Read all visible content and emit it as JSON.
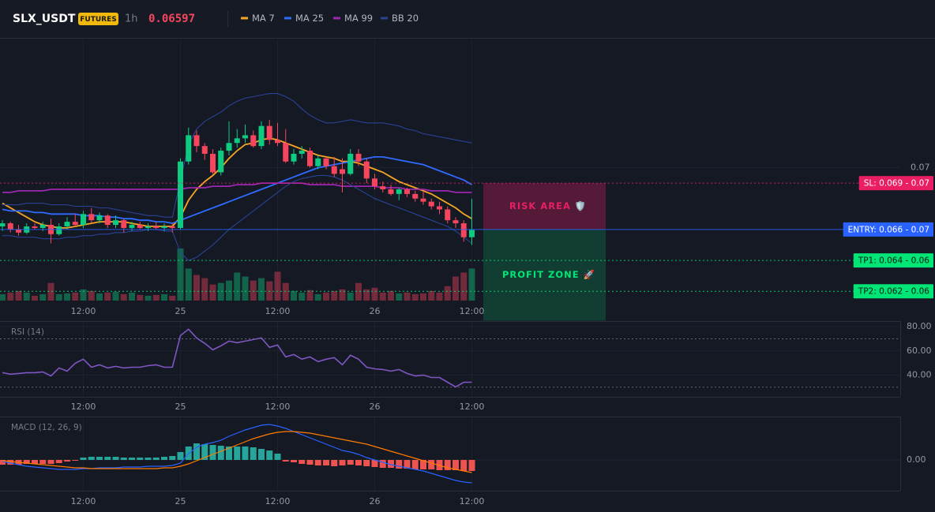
{
  "header": {
    "symbol": "SLX_USDT",
    "badge": "FUTURES",
    "interval": "1h",
    "price": "0.06597"
  },
  "chart_data": [
    {
      "type": "candlestick",
      "categories": [
        null,
        null,
        null,
        null,
        null,
        null,
        null,
        null,
        null,
        null,
        "12:00",
        null,
        null,
        null,
        null,
        null,
        null,
        null,
        null,
        null,
        null,
        null,
        "25",
        null,
        null,
        null,
        null,
        null,
        null,
        null,
        null,
        null,
        null,
        null,
        "12:00",
        null,
        null,
        null,
        null,
        null,
        null,
        null,
        null,
        null,
        null,
        null,
        "26",
        null,
        null,
        null,
        null,
        null,
        null,
        null,
        null,
        null,
        null,
        null,
        "12:00"
      ],
      "open": [
        0.0662,
        0.0664,
        0.066,
        0.0658,
        0.0662,
        0.0661,
        0.0663,
        0.0657,
        0.0662,
        0.0665,
        0.0663,
        0.067,
        0.0666,
        0.0669,
        0.0663,
        0.0666,
        0.0661,
        0.0663,
        0.0661,
        0.0662,
        0.0661,
        0.0662,
        0.0661,
        0.0704,
        0.0721,
        0.0714,
        0.0709,
        0.0697,
        0.0711,
        0.0716,
        0.0719,
        0.0721,
        0.0714,
        0.0727,
        0.0718,
        0.0716,
        0.0704,
        0.0709,
        0.0711,
        0.0701,
        0.0706,
        0.0701,
        0.0699,
        0.0696,
        0.0709,
        0.0704,
        0.0693,
        0.0688,
        0.0686,
        0.0683,
        0.0686,
        0.0683,
        0.068,
        0.0678,
        0.0675,
        0.0673,
        0.0666,
        0.0664,
        0.0655
      ],
      "high": [
        0.0666,
        0.0665,
        0.0663,
        0.0664,
        0.0664,
        0.0665,
        0.0667,
        0.0664,
        0.0668,
        0.067,
        0.0672,
        0.0674,
        0.0671,
        0.067,
        0.0669,
        0.0667,
        0.0665,
        0.0665,
        0.0664,
        0.0665,
        0.0664,
        0.0664,
        0.0706,
        0.0726,
        0.0724,
        0.0716,
        0.0712,
        0.0713,
        0.073,
        0.0725,
        0.0728,
        0.0724,
        0.073,
        0.0731,
        0.0729,
        0.0725,
        0.0712,
        0.0714,
        0.0713,
        0.0708,
        0.0707,
        0.0707,
        0.0706,
        0.0712,
        0.0712,
        0.0706,
        0.0696,
        0.0691,
        0.0689,
        0.0687,
        0.0687,
        0.0685,
        0.0685,
        0.068,
        0.0678,
        0.0675,
        0.0668,
        0.0666,
        0.068
      ],
      "low": [
        0.0659,
        0.0658,
        0.0656,
        0.0657,
        0.066,
        0.0659,
        0.0651,
        0.0656,
        0.066,
        0.0662,
        0.0661,
        0.0664,
        0.0664,
        0.0661,
        0.0661,
        0.0658,
        0.0659,
        0.066,
        0.0659,
        0.066,
        0.0659,
        0.0658,
        0.066,
        0.0702,
        0.071,
        0.0705,
        0.0696,
        0.0695,
        0.0708,
        0.0713,
        0.0716,
        0.0713,
        0.0712,
        0.0715,
        0.0714,
        0.0703,
        0.0702,
        0.0706,
        0.07,
        0.0699,
        0.0699,
        0.0694,
        0.0684,
        0.0695,
        0.0701,
        0.069,
        0.0686,
        0.0684,
        0.0682,
        0.0679,
        0.0681,
        0.0678,
        0.0676,
        0.0673,
        0.067,
        0.0664,
        0.0661,
        0.0652,
        0.065
      ],
      "close": [
        0.0664,
        0.066,
        0.0658,
        0.0662,
        0.0661,
        0.0663,
        0.0657,
        0.0662,
        0.0665,
        0.0663,
        0.067,
        0.0666,
        0.0669,
        0.0663,
        0.0666,
        0.0661,
        0.0663,
        0.0661,
        0.0662,
        0.0661,
        0.0662,
        0.0661,
        0.0704,
        0.0721,
        0.0714,
        0.0709,
        0.0697,
        0.0711,
        0.0716,
        0.0719,
        0.0721,
        0.0714,
        0.0727,
        0.0718,
        0.0716,
        0.0704,
        0.0709,
        0.0711,
        0.0701,
        0.0706,
        0.0701,
        0.0696,
        0.0696,
        0.0709,
        0.0704,
        0.0693,
        0.0688,
        0.0686,
        0.0683,
        0.0686,
        0.0683,
        0.068,
        0.0678,
        0.0675,
        0.0673,
        0.0666,
        0.0664,
        0.0655,
        0.06597
      ],
      "volume": [
        8,
        10,
        12,
        10,
        6,
        8,
        22,
        8,
        9,
        10,
        14,
        12,
        9,
        10,
        11,
        8,
        10,
        7,
        6,
        7,
        8,
        6,
        65,
        40,
        32,
        28,
        20,
        22,
        25,
        35,
        30,
        25,
        28,
        24,
        36,
        22,
        12,
        10,
        13,
        8,
        10,
        12,
        14,
        10,
        22,
        14,
        16,
        10,
        12,
        9,
        10,
        8,
        9,
        12,
        10,
        18,
        30,
        35,
        40
      ],
      "up_color": "#0ecb81",
      "down_color": "#f6465d",
      "ylim": [
        0.0614,
        0.0783
      ],
      "yticks": [
        {
          "value": 0.07,
          "label": "0.07"
        }
      ],
      "series": [
        {
          "name": "MA 7",
          "color": "#f5a623",
          "values": [
            0.0677,
            0.0674,
            0.0671,
            0.0668,
            0.0665,
            0.0663,
            0.0662,
            0.0661,
            0.0661,
            0.0662,
            0.0663,
            0.0664,
            0.0665,
            0.0665,
            0.0665,
            0.0665,
            0.0664,
            0.0663,
            0.0662,
            0.0662,
            0.0662,
            0.0662,
            0.0668,
            0.0679,
            0.0686,
            0.0691,
            0.0695,
            0.07,
            0.0706,
            0.0711,
            0.0715,
            0.0716,
            0.0718,
            0.0719,
            0.0718,
            0.0716,
            0.0714,
            0.0712,
            0.071,
            0.0708,
            0.0707,
            0.0706,
            0.0704,
            0.0704,
            0.0703,
            0.0701,
            0.0699,
            0.0697,
            0.0694,
            0.0691,
            0.0689,
            0.0687,
            0.0685,
            0.0683,
            0.068,
            0.0677,
            0.0674,
            0.067,
            0.0667
          ]
        },
        {
          "name": "MA 25",
          "color": "#2f6bff",
          "values": [
            0.0673,
            0.0672,
            0.0672,
            0.0672,
            0.0671,
            0.0671,
            0.067,
            0.067,
            0.067,
            0.067,
            0.0669,
            0.0669,
            0.0669,
            0.0668,
            0.0668,
            0.0667,
            0.0667,
            0.0666,
            0.0666,
            0.0665,
            0.0665,
            0.0664,
            0.0666,
            0.0668,
            0.067,
            0.0672,
            0.0674,
            0.0676,
            0.0678,
            0.068,
            0.0682,
            0.0684,
            0.0686,
            0.0688,
            0.069,
            0.0692,
            0.0694,
            0.0696,
            0.0698,
            0.07,
            0.0701,
            0.0702,
            0.0703,
            0.0704,
            0.0705,
            0.0706,
            0.0707,
            0.0707,
            0.0706,
            0.0705,
            0.0704,
            0.0703,
            0.0702,
            0.07,
            0.0698,
            0.0696,
            0.0694,
            0.0692,
            0.0689
          ]
        },
        {
          "name": "MA 99",
          "color": "#9c27b0",
          "values": [
            0.0684,
            0.0684,
            0.0685,
            0.0685,
            0.0685,
            0.0685,
            0.0686,
            0.0686,
            0.0686,
            0.0686,
            0.0686,
            0.0686,
            0.0686,
            0.0686,
            0.0686,
            0.0686,
            0.0686,
            0.0686,
            0.0686,
            0.0686,
            0.0686,
            0.0686,
            0.0686,
            0.0687,
            0.0687,
            0.0687,
            0.0688,
            0.0688,
            0.0688,
            0.0689,
            0.0689,
            0.0689,
            0.069,
            0.069,
            0.069,
            0.069,
            0.069,
            0.069,
            0.0689,
            0.0689,
            0.0689,
            0.0689,
            0.0688,
            0.0688,
            0.0688,
            0.0688,
            0.0688,
            0.0687,
            0.0687,
            0.0687,
            0.0686,
            0.0686,
            0.0686,
            0.0685,
            0.0685,
            0.0685,
            0.0684,
            0.0684,
            0.0684
          ]
        },
        {
          "name": "BB 20",
          "color": "#2b4294",
          "upper": [
            0.0676,
            0.0676,
            0.0676,
            0.0677,
            0.0677,
            0.0677,
            0.0676,
            0.0676,
            0.0676,
            0.0675,
            0.0675,
            0.0675,
            0.0674,
            0.0674,
            0.0673,
            0.0672,
            0.0671,
            0.067,
            0.0669,
            0.0669,
            0.0668,
            0.0668,
            0.0692,
            0.0715,
            0.0725,
            0.073,
            0.0733,
            0.0736,
            0.074,
            0.0743,
            0.0745,
            0.0746,
            0.0747,
            0.0748,
            0.0748,
            0.0746,
            0.0743,
            0.0738,
            0.0734,
            0.0731,
            0.0729,
            0.0729,
            0.073,
            0.0731,
            0.073,
            0.0729,
            0.0729,
            0.0729,
            0.0728,
            0.0727,
            0.0725,
            0.0724,
            0.0722,
            0.0721,
            0.072,
            0.0719,
            0.0718,
            0.0717,
            0.0716
          ],
          "lower": [
            0.0656,
            0.0656,
            0.0655,
            0.0655,
            0.0655,
            0.0654,
            0.0654,
            0.0654,
            0.0655,
            0.0655,
            0.0656,
            0.0656,
            0.0657,
            0.0657,
            0.0658,
            0.0658,
            0.0659,
            0.0659,
            0.066,
            0.066,
            0.0659,
            0.0659,
            0.0645,
            0.064,
            0.0642,
            0.0646,
            0.065,
            0.0655,
            0.066,
            0.0664,
            0.0668,
            0.0672,
            0.0676,
            0.068,
            0.0684,
            0.0688,
            0.0691,
            0.0693,
            0.0694,
            0.0695,
            0.0695,
            0.0694,
            0.0692,
            0.0689,
            0.0686,
            0.0683,
            0.068,
            0.0678,
            0.0676,
            0.0674,
            0.0672,
            0.067,
            0.0668,
            0.0666,
            0.0664,
            0.0662,
            0.0659,
            0.0655,
            0.0651
          ]
        }
      ],
      "levels": [
        {
          "label": "SL: 0.069 - 0.07",
          "value": 0.069,
          "color": "#e91e63",
          "text_color": "#ffffff",
          "style": "dotted"
        },
        {
          "label": "ENTRY: 0.066 - 0.07",
          "value": 0.066,
          "color": "#2962ff",
          "text_color": "#ffffff",
          "style": "solid"
        },
        {
          "label": "TP1: 0.064 - 0.06",
          "value": 0.064,
          "color": "#00e676",
          "text_color": "#0b1a12",
          "style": "dotted"
        },
        {
          "label": "TP2: 0.062 - 0.06",
          "value": 0.062,
          "color": "#00e676",
          "text_color": "#0b1a12",
          "style": "dotted"
        }
      ],
      "zones": [
        {
          "label": "RISK AREA 🛡️",
          "range": [
            0.069,
            0.066
          ],
          "color": "#e91e63"
        },
        {
          "label": "PROFIT ZONE 🚀",
          "range": [
            0.066,
            0.0601
          ],
          "color": "#00e676"
        }
      ]
    },
    {
      "type": "line",
      "title": "RSI (14)",
      "color": "#7e57c2",
      "values": [
        42.0,
        40.7,
        41.3,
        42.0,
        42.0,
        42.6,
        39.3,
        45.9,
        43.3,
        49.8,
        53.1,
        46.5,
        48.5,
        45.9,
        47.2,
        45.9,
        46.5,
        46.5,
        47.8,
        48.5,
        46.5,
        46.5,
        72.7,
        77.9,
        70.7,
        66.2,
        60.9,
        64.2,
        68.1,
        66.8,
        68.1,
        69.4,
        70.7,
        62.9,
        64.9,
        55.0,
        57.0,
        53.1,
        55.0,
        51.1,
        53.1,
        54.4,
        48.5,
        56.4,
        53.1,
        46.5,
        45.2,
        44.6,
        43.3,
        44.6,
        41.3,
        39.3,
        40.0,
        38.0,
        38.0,
        34.1,
        30.2,
        34.1,
        34.1
      ],
      "ylim": [
        22,
        84
      ],
      "yticks": [
        {
          "value": 80,
          "label": "80.00"
        },
        {
          "value": 60,
          "label": "60.00"
        },
        {
          "value": 40,
          "label": "40.00"
        }
      ],
      "levels": [
        70,
        30
      ]
    },
    {
      "type": "macd",
      "title": "MACD (12, 26, 9)",
      "macd_color": "#2962ff",
      "signal_color": "#ff7a00",
      "up_color": "#26a69a",
      "down_color": "#ef5350",
      "histogram": [
        -6e-05,
        -6e-05,
        -6e-05,
        -5e-05,
        -5e-05,
        -5e-05,
        -5e-05,
        -4e-05,
        -2e-05,
        -1e-05,
        3e-05,
        4e-05,
        4e-05,
        4e-05,
        4e-05,
        3e-05,
        3e-05,
        3e-05,
        3e-05,
        3e-05,
        4e-05,
        5e-05,
        0.0001,
        0.00017,
        0.00021,
        0.0002,
        0.00019,
        0.00018,
        0.00017,
        0.00017,
        0.00017,
        0.00016,
        0.00014,
        0.00012,
        8e-05,
        -2e-05,
        -3e-05,
        -5e-05,
        -6e-05,
        -7e-05,
        -7e-05,
        -8e-05,
        -7e-05,
        -6e-05,
        -7e-05,
        -8e-05,
        -9e-05,
        -0.0001,
        -0.0001,
        -0.00011,
        -0.00011,
        -0.00012,
        -0.00012,
        -0.00012,
        -0.00013,
        -0.00013,
        -0.00013,
        -0.00014,
        -0.00014
      ],
      "macd": [
        -2e-05,
        -4e-05,
        -6e-05,
        -8e-05,
        -9e-05,
        -0.0001,
        -0.00011,
        -0.00012,
        -0.00012,
        -0.00012,
        -0.00011,
        -0.00011,
        -0.0001,
        -0.0001,
        -0.0001,
        -9e-05,
        -9e-05,
        -9e-05,
        -8e-05,
        -8e-05,
        -8e-05,
        -7e-05,
        -4e-05,
        8e-05,
        0.00016,
        0.0002,
        0.00022,
        0.00025,
        0.0003,
        0.00034,
        0.00038,
        0.00041,
        0.00044,
        0.00045,
        0.00043,
        0.0004,
        0.00036,
        0.00032,
        0.00028,
        0.00024,
        0.0002,
        0.00016,
        0.00012,
        0.0001,
        7e-05,
        3e-05,
        0.0,
        -3e-05,
        -6e-05,
        -8e-05,
        -0.0001,
        -0.00012,
        -0.00014,
        -0.00017,
        -0.0002,
        -0.00023,
        -0.00026,
        -0.00028,
        -0.00029
      ],
      "signal": [
        -1e-05,
        -2e-05,
        -3e-05,
        -4e-05,
        -5e-05,
        -6e-05,
        -7e-05,
        -8e-05,
        -9e-05,
        -0.0001,
        -0.0001,
        -0.00011,
        -0.00011,
        -0.00011,
        -0.00011,
        -0.00011,
        -0.00011,
        -0.00011,
        -0.00011,
        -0.00011,
        -0.0001,
        -0.0001,
        -8e-05,
        -5e-05,
        -1e-05,
        3e-05,
        7e-05,
        0.00011,
        0.00015,
        0.00019,
        0.00023,
        0.00027,
        0.0003,
        0.00033,
        0.00035,
        0.00036,
        0.00036,
        0.00035,
        0.00034,
        0.00032,
        0.0003,
        0.00028,
        0.00026,
        0.00024,
        0.00022,
        0.0002,
        0.00017,
        0.00014,
        0.00011,
        8e-05,
        5e-05,
        2e-05,
        -1e-05,
        -4e-05,
        -7e-05,
        -0.0001,
        -0.00012,
        -0.00014,
        -0.00016
      ],
      "ylim": [
        -0.00039,
        0.00054
      ],
      "yticks": [
        {
          "value": 0,
          "label": "0.00"
        }
      ]
    }
  ]
}
